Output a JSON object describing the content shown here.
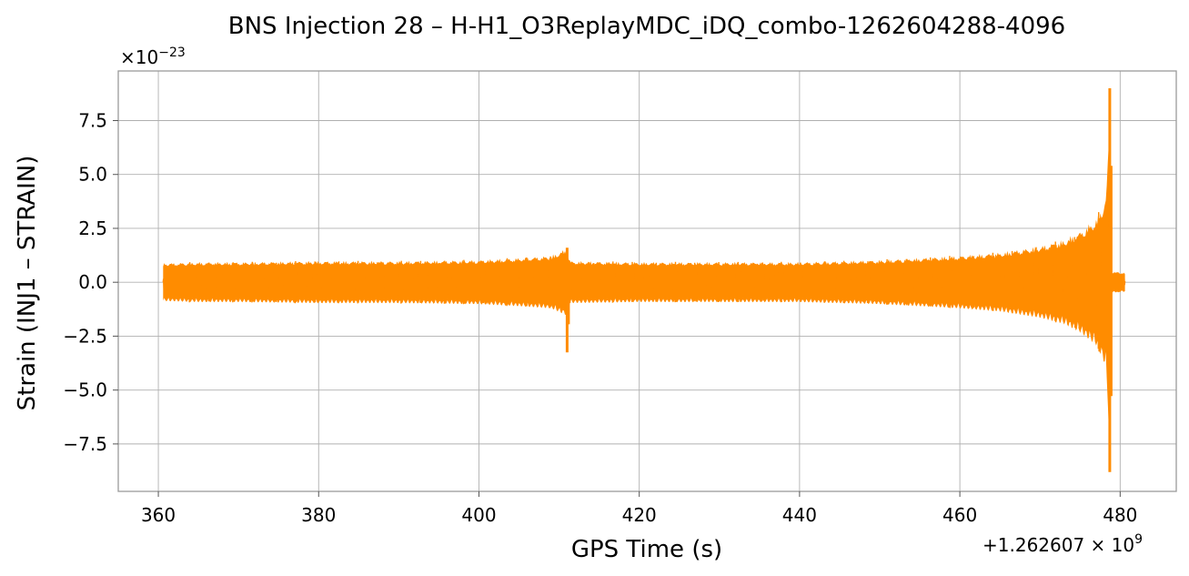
{
  "chart_data": {
    "type": "line",
    "title": "BNS Injection 28 – H-H1_O3ReplayMDC_iDQ_combo-1262604288-4096",
    "xlabel": "GPS Time (s)",
    "ylabel": "Strain (INJ1 – STRAIN)",
    "x_offset_label": "+1.262607 × 10",
    "x_offset_exponent": "9",
    "y_scale_label": "×10",
    "y_scale_exponent": "−23",
    "xlim": [
      355,
      487
    ],
    "ylim": [
      -9.7,
      9.8
    ],
    "xticks": [
      360,
      380,
      400,
      420,
      440,
      460,
      480
    ],
    "xtick_labels": [
      "360",
      "380",
      "400",
      "420",
      "440",
      "460",
      "480"
    ],
    "yticks": [
      -7.5,
      -5.0,
      -2.5,
      0.0,
      2.5,
      5.0,
      7.5
    ],
    "ytick_labels": [
      "−7.5",
      "−5.0",
      "−2.5",
      "0.0",
      "2.5",
      "5.0",
      "7.5"
    ],
    "grid": true,
    "series": [
      {
        "color": "#ff8c00",
        "x_start": 360.6,
        "x_end": 480.6,
        "envelope": [
          [
            360.6,
            0.9
          ],
          [
            365,
            0.95
          ],
          [
            370,
            0.95
          ],
          [
            380,
            1.0
          ],
          [
            390,
            1.0
          ],
          [
            400,
            1.05
          ],
          [
            405,
            1.15
          ],
          [
            409,
            1.25
          ],
          [
            411,
            1.6
          ],
          [
            411.3,
            1.0
          ],
          [
            420,
            0.95
          ],
          [
            430,
            0.95
          ],
          [
            440,
            0.95
          ],
          [
            450,
            1.05
          ],
          [
            455,
            1.15
          ],
          [
            460,
            1.25
          ],
          [
            465,
            1.4
          ],
          [
            470,
            1.7
          ],
          [
            473,
            2.0
          ],
          [
            475,
            2.4
          ],
          [
            477,
            3.0
          ],
          [
            478.2,
            4.0
          ],
          [
            478.5,
            6.0
          ],
          [
            478.7,
            9.0
          ],
          [
            478.85,
            0.5
          ],
          [
            480.6,
            0.45
          ]
        ],
        "spikes": [
          {
            "x": 411.0,
            "y_min": -3.25,
            "y_max": 1.6
          },
          {
            "x": 478.7,
            "y_min": -8.8,
            "y_max": 9.0
          }
        ]
      }
    ]
  }
}
